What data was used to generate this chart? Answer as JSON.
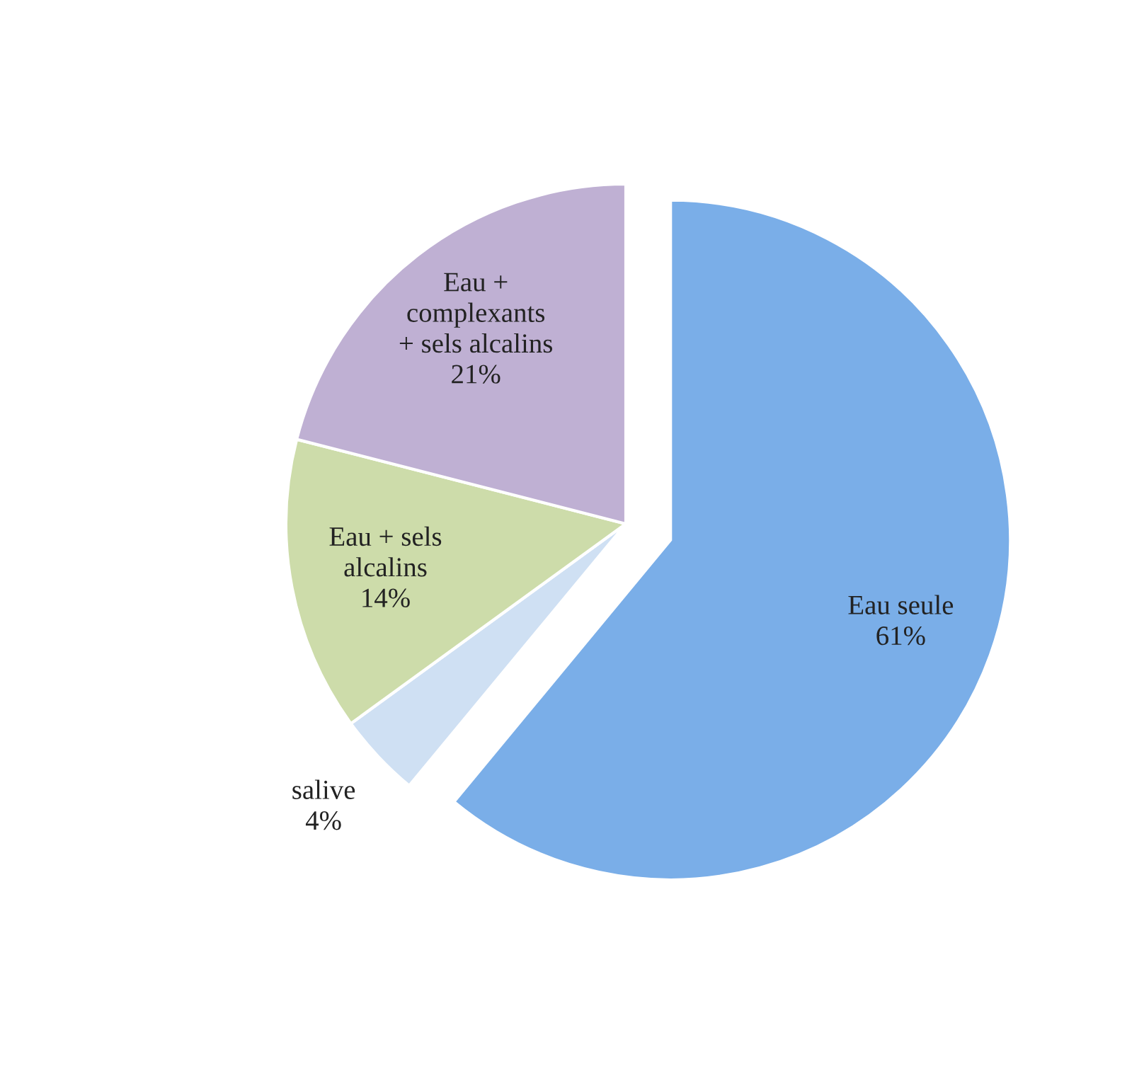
{
  "chart_data": {
    "type": "pie",
    "categories": [
      "Eau seule",
      "salive",
      "Eau + sels\nalcalins",
      "Eau +\ncomplexants\n+ sels alcalins"
    ],
    "values": [
      61,
      4,
      14,
      21
    ],
    "value_labels": [
      "61%",
      "4%",
      "14%",
      "21%"
    ],
    "colors": [
      "#7aaee8",
      "#cfe0f3",
      "#cddcaa",
      "#bfb0d3"
    ],
    "legend": false
  }
}
